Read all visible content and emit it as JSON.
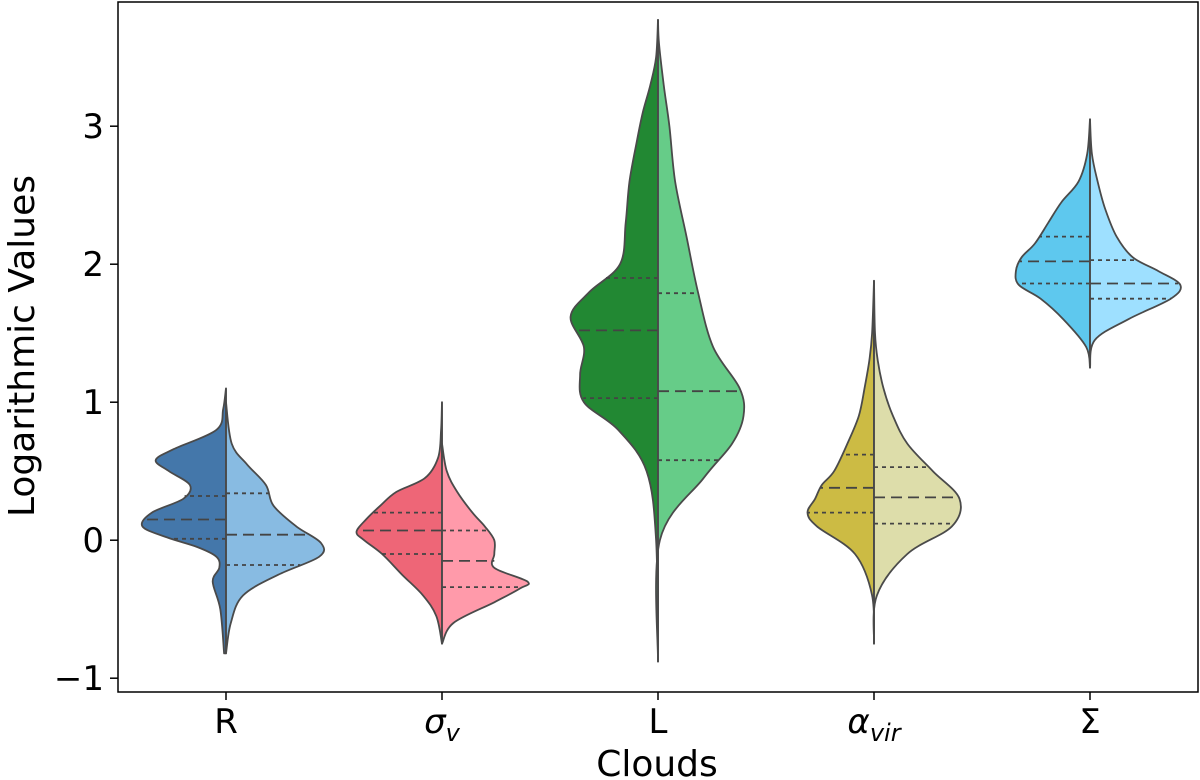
{
  "chart_data": {
    "type": "violin",
    "split": true,
    "xlabel": "Clouds",
    "ylabel": "Logarithmic Values",
    "ylim": [
      -1.1,
      3.9
    ],
    "yticks": [
      -1,
      0,
      1,
      2,
      3
    ],
    "ytick_labels": [
      "−1",
      "0",
      "1",
      "2",
      "3"
    ],
    "grid": false,
    "categories": [
      {
        "label": "R",
        "sub": "",
        "italic": false,
        "colors": {
          "left": "#4477aa",
          "right": "#88bbe2"
        },
        "left": {
          "range": [
            -0.82,
            1.1
          ],
          "profile": [
            [
              -0.82,
              0.02
            ],
            [
              -0.5,
              0.06
            ],
            [
              -0.3,
              0.14
            ],
            [
              -0.2,
              0.07
            ],
            [
              -0.12,
              0.1
            ],
            [
              -0.05,
              0.3
            ],
            [
              0.02,
              0.62
            ],
            [
              0.1,
              0.88
            ],
            [
              0.2,
              0.78
            ],
            [
              0.3,
              0.45
            ],
            [
              0.4,
              0.38
            ],
            [
              0.5,
              0.6
            ],
            [
              0.58,
              0.74
            ],
            [
              0.66,
              0.55
            ],
            [
              0.8,
              0.1
            ],
            [
              0.95,
              0.03
            ],
            [
              1.1,
              0.0
            ]
          ],
          "quartiles": [
            0.01,
            0.15,
            0.32
          ]
        },
        "right": {
          "range": [
            -0.82,
            1.1
          ],
          "profile": [
            [
              -0.82,
              0.0
            ],
            [
              -0.6,
              0.05
            ],
            [
              -0.4,
              0.18
            ],
            [
              -0.25,
              0.55
            ],
            [
              -0.12,
              0.98
            ],
            [
              -0.02,
              1.0
            ],
            [
              0.1,
              0.74
            ],
            [
              0.25,
              0.5
            ],
            [
              0.4,
              0.42
            ],
            [
              0.55,
              0.22
            ],
            [
              0.7,
              0.06
            ],
            [
              1.0,
              0.0
            ]
          ],
          "quartiles": [
            -0.18,
            0.04,
            0.34
          ]
        }
      },
      {
        "label": "σ",
        "sub": "v",
        "italic": true,
        "colors": {
          "left": "#ee6677",
          "right": "#ff9aaa"
        },
        "left": {
          "range": [
            -0.75,
            1.0
          ],
          "profile": [
            [
              -0.75,
              0.0
            ],
            [
              -0.55,
              0.06
            ],
            [
              -0.4,
              0.2
            ],
            [
              -0.25,
              0.42
            ],
            [
              -0.1,
              0.63
            ],
            [
              0.0,
              0.82
            ],
            [
              0.06,
              0.9
            ],
            [
              0.15,
              0.8
            ],
            [
              0.25,
              0.65
            ],
            [
              0.35,
              0.48
            ],
            [
              0.45,
              0.18
            ],
            [
              0.6,
              0.04
            ],
            [
              0.8,
              0.01
            ],
            [
              1.0,
              0.0
            ]
          ],
          "quartiles": [
            -0.1,
            0.07,
            0.2
          ]
        },
        "right": {
          "range": [
            -0.75,
            1.0
          ],
          "profile": [
            [
              -0.75,
              0.0
            ],
            [
              -0.6,
              0.12
            ],
            [
              -0.45,
              0.55
            ],
            [
              -0.35,
              0.82
            ],
            [
              -0.3,
              0.9
            ],
            [
              -0.2,
              0.55
            ],
            [
              -0.1,
              0.55
            ],
            [
              0.0,
              0.55
            ],
            [
              0.1,
              0.45
            ],
            [
              0.2,
              0.32
            ],
            [
              0.35,
              0.16
            ],
            [
              0.5,
              0.05
            ],
            [
              0.7,
              0.0
            ]
          ],
          "quartiles": [
            -0.34,
            -0.15,
            0.07
          ]
        }
      },
      {
        "label": "L",
        "sub": "",
        "italic": false,
        "colors": {
          "left": "#228833",
          "right": "#66cc88"
        },
        "left": {
          "range": [
            -0.88,
            3.77
          ],
          "profile": [
            [
              -0.88,
              0.0
            ],
            [
              0.0,
              0.02
            ],
            [
              0.5,
              0.12
            ],
            [
              0.8,
              0.42
            ],
            [
              1.0,
              0.78
            ],
            [
              1.2,
              0.82
            ],
            [
              1.4,
              0.78
            ],
            [
              1.62,
              0.92
            ],
            [
              1.8,
              0.72
            ],
            [
              2.0,
              0.4
            ],
            [
              2.3,
              0.34
            ],
            [
              2.6,
              0.3
            ],
            [
              2.9,
              0.22
            ],
            [
              3.1,
              0.16
            ],
            [
              3.3,
              0.08
            ],
            [
              3.5,
              0.02
            ],
            [
              3.77,
              0.0
            ]
          ],
          "quartiles": [
            1.03,
            1.52,
            1.9
          ]
        },
        "right": {
          "range": [
            -0.88,
            3.77
          ],
          "profile": [
            [
              -0.88,
              0.0
            ],
            [
              0.0,
              0.02
            ],
            [
              0.45,
              0.48
            ],
            [
              0.7,
              0.78
            ],
            [
              0.9,
              0.9
            ],
            [
              1.1,
              0.86
            ],
            [
              1.4,
              0.58
            ],
            [
              1.8,
              0.42
            ],
            [
              2.2,
              0.3
            ],
            [
              2.6,
              0.18
            ],
            [
              3.0,
              0.12
            ],
            [
              3.3,
              0.06
            ],
            [
              3.6,
              0.01
            ],
            [
              3.77,
              0.0
            ]
          ],
          "quartiles": [
            0.58,
            1.08,
            1.79
          ]
        }
      },
      {
        "label": "α",
        "sub": "vir",
        "italic": true,
        "colors": {
          "left": "#ccbb44",
          "right": "#ddddaa"
        },
        "left": {
          "range": [
            -0.75,
            1.88
          ],
          "profile": [
            [
              -0.75,
              0.0
            ],
            [
              -0.4,
              0.02
            ],
            [
              -0.1,
              0.2
            ],
            [
              0.1,
              0.6
            ],
            [
              0.2,
              0.7
            ],
            [
              0.3,
              0.62
            ],
            [
              0.4,
              0.55
            ],
            [
              0.5,
              0.42
            ],
            [
              0.7,
              0.28
            ],
            [
              0.9,
              0.16
            ],
            [
              1.1,
              0.1
            ],
            [
              1.3,
              0.05
            ],
            [
              1.5,
              0.02
            ],
            [
              1.88,
              0.0
            ]
          ],
          "quartiles": [
            0.2,
            0.38,
            0.62
          ]
        },
        "right": {
          "range": [
            -0.75,
            1.88
          ],
          "profile": [
            [
              -0.75,
              0.0
            ],
            [
              -0.4,
              0.03
            ],
            [
              -0.1,
              0.35
            ],
            [
              0.1,
              0.82
            ],
            [
              0.3,
              0.9
            ],
            [
              0.5,
              0.62
            ],
            [
              0.7,
              0.35
            ],
            [
              0.9,
              0.2
            ],
            [
              1.1,
              0.1
            ],
            [
              1.3,
              0.04
            ],
            [
              1.5,
              0.01
            ],
            [
              1.88,
              0.0
            ]
          ],
          "quartiles": [
            0.12,
            0.31,
            0.53
          ]
        }
      },
      {
        "label": "Σ",
        "sub": "",
        "italic": false,
        "colors": {
          "left": "#5ec8ee",
          "right": "#9ee0ff"
        },
        "left": {
          "range": [
            1.25,
            3.05
          ],
          "profile": [
            [
              1.25,
              0.0
            ],
            [
              1.4,
              0.04
            ],
            [
              1.6,
              0.28
            ],
            [
              1.75,
              0.52
            ],
            [
              1.85,
              0.75
            ],
            [
              1.95,
              0.78
            ],
            [
              2.05,
              0.72
            ],
            [
              2.15,
              0.58
            ],
            [
              2.3,
              0.44
            ],
            [
              2.45,
              0.3
            ],
            [
              2.6,
              0.12
            ],
            [
              2.8,
              0.03
            ],
            [
              3.05,
              0.0
            ]
          ],
          "quartiles": [
            1.86,
            2.02,
            2.2
          ]
        },
        "right": {
          "range": [
            1.25,
            3.05
          ],
          "profile": [
            [
              1.25,
              0.0
            ],
            [
              1.45,
              0.05
            ],
            [
              1.6,
              0.4
            ],
            [
              1.75,
              0.85
            ],
            [
              1.85,
              0.95
            ],
            [
              1.95,
              0.72
            ],
            [
              2.05,
              0.45
            ],
            [
              2.2,
              0.28
            ],
            [
              2.4,
              0.16
            ],
            [
              2.6,
              0.08
            ],
            [
              2.8,
              0.02
            ],
            [
              3.05,
              0.0
            ]
          ],
          "quartiles": [
            1.75,
            1.86,
            2.03
          ]
        }
      }
    ]
  }
}
